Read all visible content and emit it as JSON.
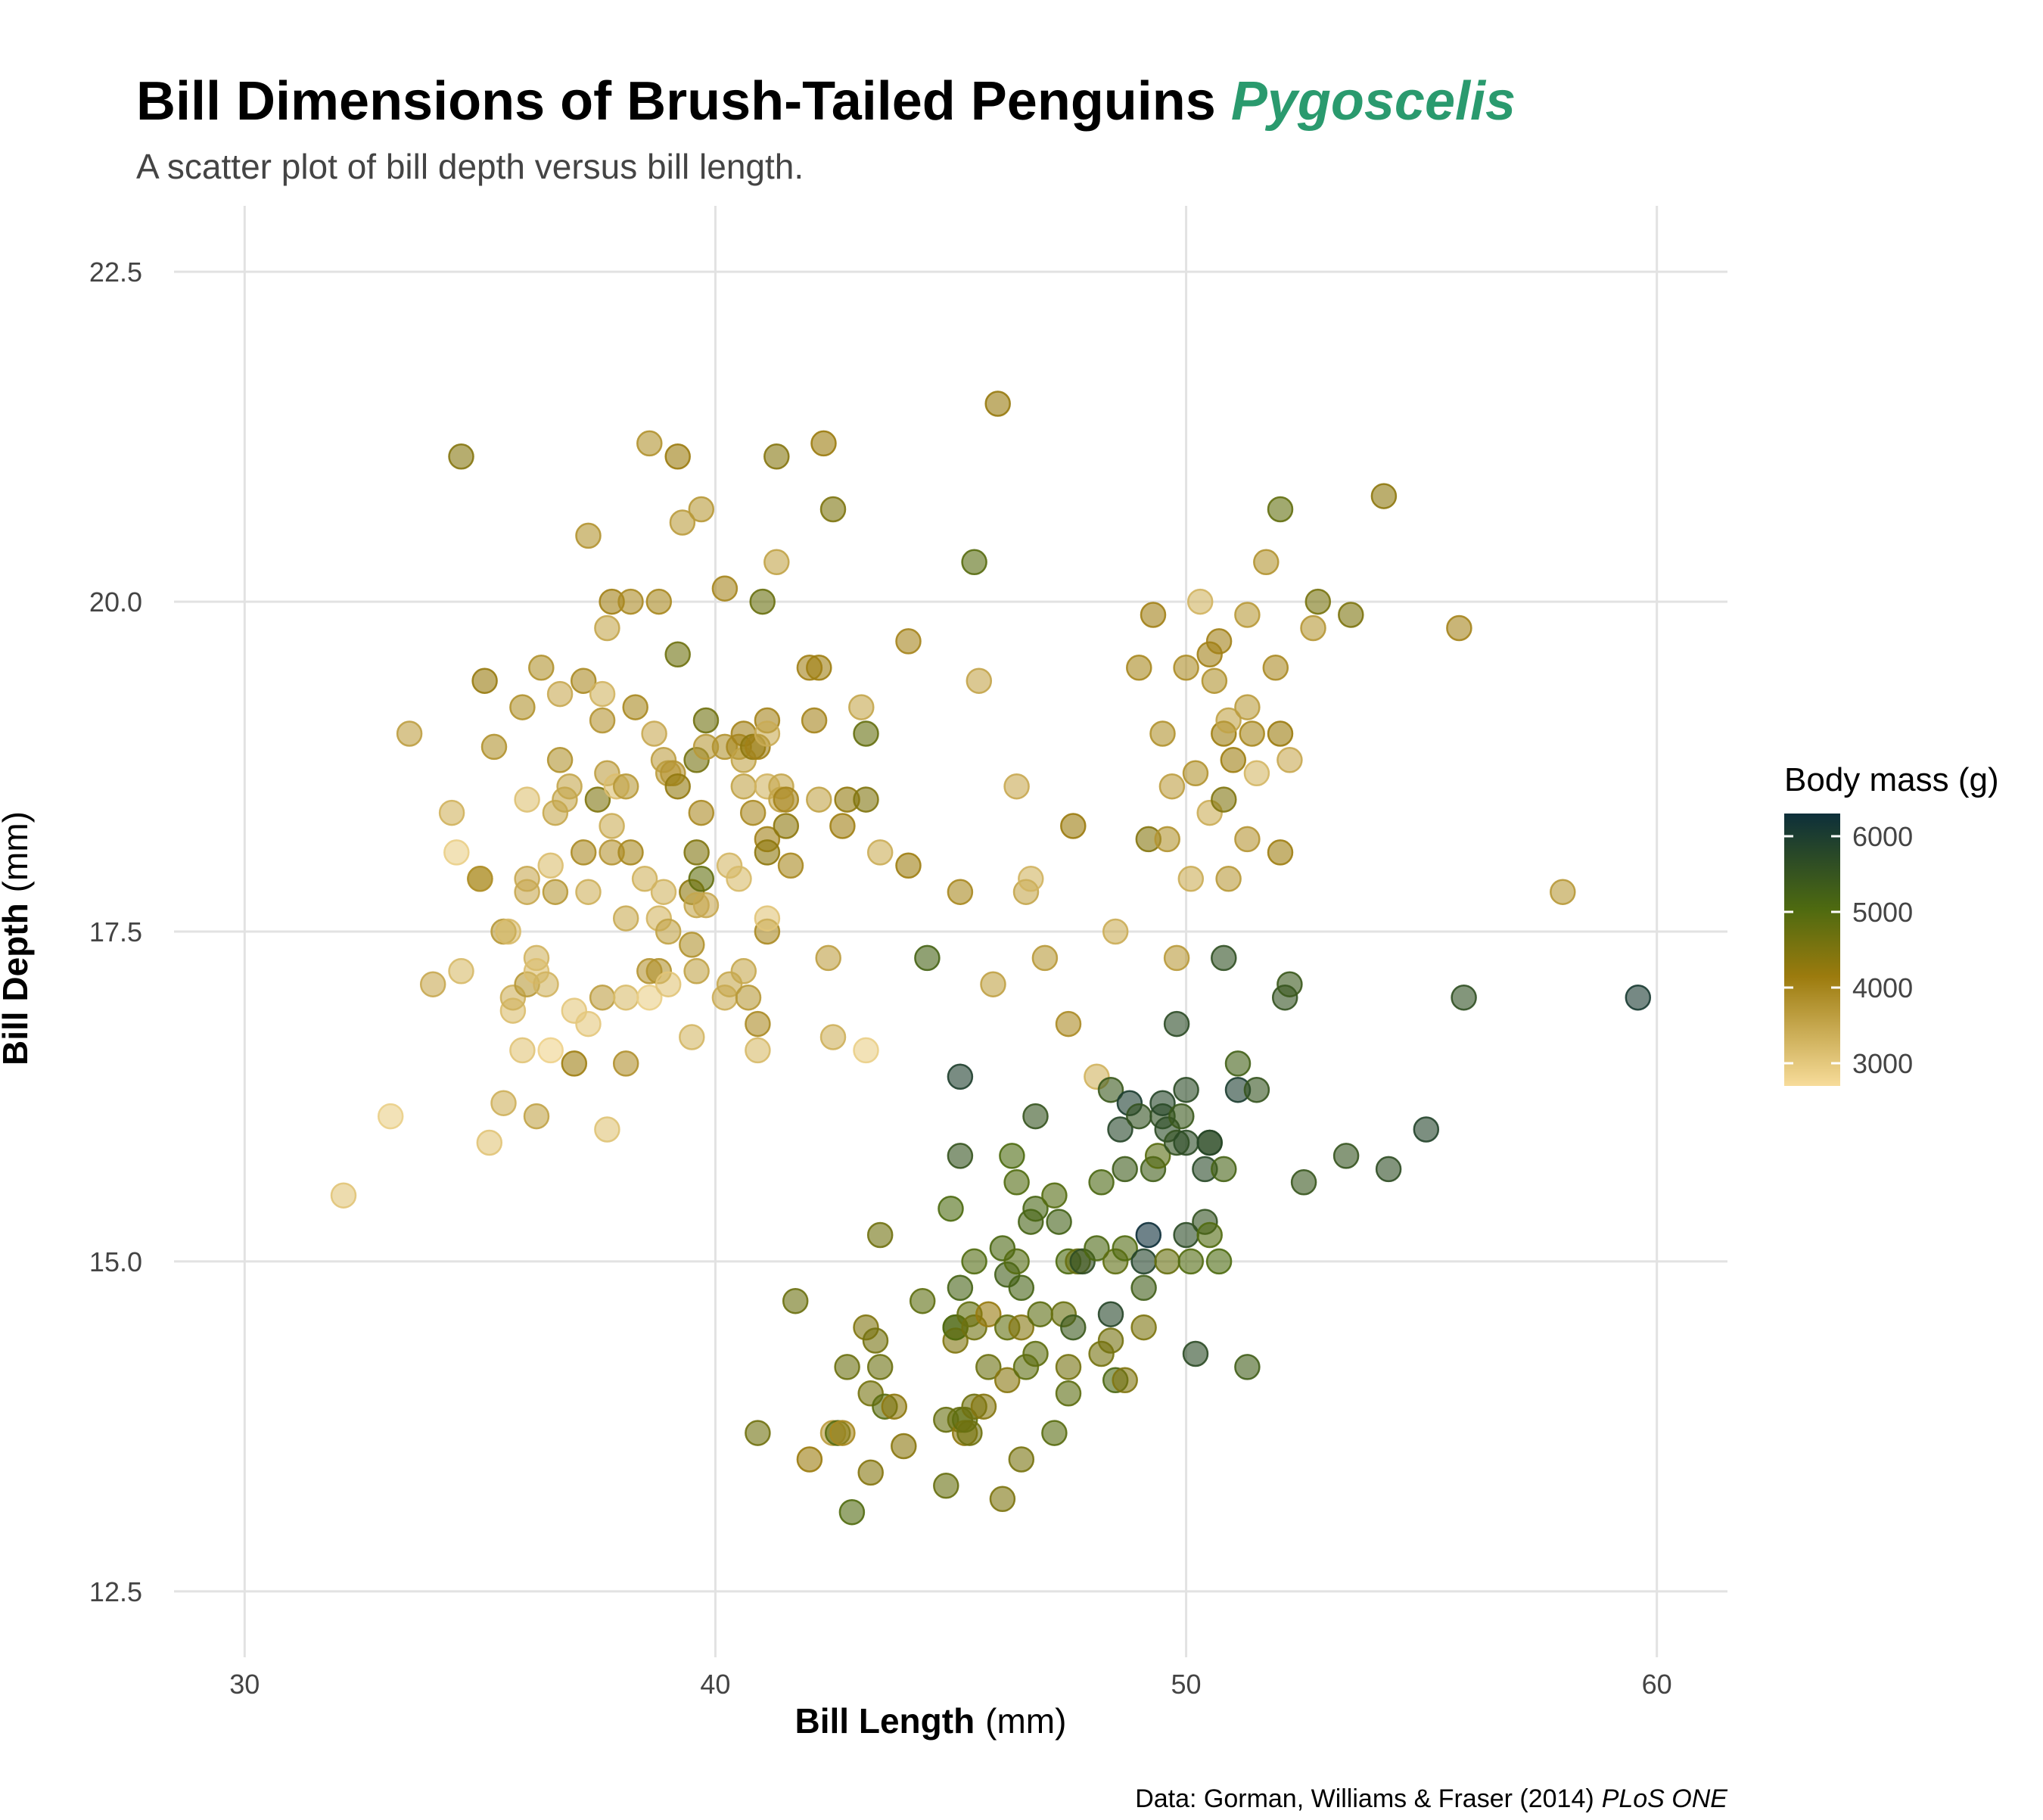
{
  "colors": {
    "grid": "#e2e2e2",
    "title_accent": "#2a9a6e",
    "gradient_low": "#f7dc9a",
    "gradient_mid_low": "#9c7b0e",
    "gradient_mid": "#4e6a10",
    "gradient_high": "#0d2f3a"
  },
  "legend": {
    "title": "Body mass (g)",
    "ticks": [
      "6000",
      "5000",
      "4000",
      "3000"
    ],
    "tick_values": [
      6000,
      5000,
      4000,
      3000
    ],
    "range": [
      2700,
      6300
    ]
  },
  "chart_data": {
    "type": "scatter",
    "title": "Bill Dimensions of Brush-Tailed Penguins",
    "title_italic": "Pygoscelis",
    "subtitle": "A scatter plot of bill depth versus bill length.",
    "xlabel_bold": "Bill Length",
    "xlabel_unit": "(mm)",
    "ylabel_bold": "Bill Depth",
    "ylabel_unit": "(mm)",
    "caption": "Data: Gorman, Williams & Fraser (2014)",
    "caption_italic": "PLoS ONE",
    "xlim": [
      28.5,
      61.5
    ],
    "ylim": [
      12.0,
      23.0
    ],
    "x_ticks": [
      30,
      40,
      50,
      60
    ],
    "x_tick_labels": [
      "30",
      "40",
      "50",
      "60"
    ],
    "y_ticks": [
      12.5,
      15.0,
      17.5,
      20.0,
      22.5
    ],
    "y_tick_labels": [
      "12.5",
      "15.0",
      "17.5",
      "20.0",
      "22.5"
    ],
    "grid": true,
    "legend_position": "right",
    "color_encoding": "Body mass (g)",
    "points": [
      [
        32.1,
        15.5,
        3050
      ],
      [
        33.1,
        16.1,
        2900
      ],
      [
        33.5,
        19.0,
        3600
      ],
      [
        34.0,
        17.1,
        3450
      ],
      [
        34.4,
        18.4,
        3325
      ],
      [
        34.5,
        18.1,
        2900
      ],
      [
        34.6,
        21.1,
        4400
      ],
      [
        34.6,
        17.2,
        3200
      ],
      [
        35.0,
        17.9,
        3800
      ],
      [
        35.0,
        17.9,
        3800
      ],
      [
        35.1,
        19.4,
        4200
      ],
      [
        35.2,
        15.9,
        3050
      ],
      [
        35.3,
        18.9,
        3800
      ],
      [
        35.5,
        17.5,
        3700
      ],
      [
        35.5,
        16.2,
        3350
      ],
      [
        35.6,
        17.5,
        3200
      ],
      [
        35.7,
        16.9,
        3150
      ],
      [
        35.7,
        17.0,
        3350
      ],
      [
        35.9,
        19.2,
        3800
      ],
      [
        35.9,
        16.6,
        3050
      ],
      [
        36.0,
        18.5,
        3100
      ],
      [
        36.0,
        17.9,
        3450
      ],
      [
        36.0,
        17.8,
        3450
      ],
      [
        36.0,
        17.1,
        3700
      ],
      [
        36.2,
        17.3,
        3300
      ],
      [
        36.2,
        16.1,
        3550
      ],
      [
        36.2,
        17.2,
        3150
      ],
      [
        36.3,
        19.5,
        3800
      ],
      [
        36.4,
        17.1,
        3300
      ],
      [
        36.5,
        16.6,
        2850
      ],
      [
        36.5,
        18.0,
        3150
      ],
      [
        36.6,
        17.8,
        3700
      ],
      [
        36.6,
        18.4,
        3475
      ],
      [
        36.7,
        18.8,
        3800
      ],
      [
        36.7,
        19.3,
        3450
      ],
      [
        36.8,
        18.5,
        3500
      ],
      [
        36.9,
        18.6,
        3500
      ],
      [
        37.0,
        16.9,
        3000
      ],
      [
        37.0,
        16.5,
        4100
      ],
      [
        37.2,
        18.1,
        3900
      ],
      [
        37.2,
        19.4,
        3900
      ],
      [
        37.3,
        20.5,
        3775
      ],
      [
        37.3,
        17.8,
        3350
      ],
      [
        37.3,
        16.8,
        3000
      ],
      [
        37.5,
        18.5,
        4475
      ],
      [
        37.6,
        19.1,
        3750
      ],
      [
        37.6,
        17.0,
        3600
      ],
      [
        37.6,
        19.3,
        3300
      ],
      [
        37.7,
        18.7,
        3600
      ],
      [
        37.7,
        16.0,
        3075
      ],
      [
        37.7,
        19.8,
        3500
      ],
      [
        37.8,
        18.1,
        3750
      ],
      [
        37.8,
        20.0,
        4050
      ],
      [
        37.8,
        18.3,
        3400
      ],
      [
        37.9,
        18.6,
        3150
      ],
      [
        38.1,
        18.6,
        3700
      ],
      [
        38.1,
        17.6,
        3425
      ],
      [
        38.1,
        17.0,
        3175
      ],
      [
        38.1,
        16.5,
        3825
      ],
      [
        38.2,
        18.1,
        3950
      ],
      [
        38.2,
        20.0,
        3900
      ],
      [
        38.3,
        19.2,
        3950
      ],
      [
        38.5,
        17.9,
        3325
      ],
      [
        38.6,
        21.2,
        3800
      ],
      [
        38.6,
        17.2,
        3750
      ],
      [
        38.6,
        17.0,
        2900
      ],
      [
        38.7,
        19.0,
        3450
      ],
      [
        38.8,
        20.0,
        3950
      ],
      [
        38.8,
        17.6,
        3275
      ],
      [
        38.8,
        17.2,
        3800
      ],
      [
        38.9,
        18.8,
        3600
      ],
      [
        38.9,
        17.8,
        3300
      ],
      [
        39.0,
        18.7,
        3650
      ],
      [
        39.0,
        17.5,
        3550
      ],
      [
        39.0,
        17.1,
        3050
      ],
      [
        39.1,
        18.7,
        3750
      ],
      [
        39.2,
        19.6,
        4675
      ],
      [
        39.2,
        18.6,
        4250
      ],
      [
        39.2,
        21.1,
        4150
      ],
      [
        39.3,
        20.6,
        3650
      ],
      [
        39.5,
        17.4,
        3800
      ],
      [
        39.5,
        16.7,
        3250
      ],
      [
        39.5,
        17.8,
        4300
      ],
      [
        39.6,
        17.7,
        3500
      ],
      [
        39.6,
        18.8,
        4600
      ],
      [
        39.6,
        17.2,
        3550
      ],
      [
        39.6,
        18.1,
        4450
      ],
      [
        39.7,
        18.4,
        3900
      ],
      [
        39.7,
        17.9,
        4800
      ],
      [
        39.7,
        20.7,
        3700
      ],
      [
        39.8,
        19.1,
        4650
      ],
      [
        39.8,
        17.7,
        3450
      ],
      [
        39.8,
        18.9,
        3700
      ],
      [
        40.2,
        18.9,
        3800
      ],
      [
        40.2,
        17.0,
        3400
      ],
      [
        40.2,
        20.1,
        3975
      ],
      [
        40.3,
        18.0,
        3250
      ],
      [
        40.3,
        17.1,
        3475
      ],
      [
        40.5,
        18.9,
        3950
      ],
      [
        40.5,
        17.9,
        3200
      ],
      [
        40.6,
        18.6,
        3550
      ],
      [
        40.6,
        19.0,
        4000
      ],
      [
        40.6,
        18.8,
        3550
      ],
      [
        40.6,
        17.2,
        3475
      ],
      [
        40.7,
        17.0,
        3700
      ],
      [
        40.8,
        18.4,
        3900
      ],
      [
        40.8,
        18.9,
        4300
      ],
      [
        40.9,
        18.9,
        4050
      ],
      [
        40.9,
        16.6,
        3200
      ],
      [
        40.9,
        16.8,
        3900
      ],
      [
        41.0,
        20.0,
        4725
      ],
      [
        41.1,
        19.1,
        4000
      ],
      [
        41.1,
        18.2,
        4050
      ],
      [
        41.1,
        18.1,
        4300
      ],
      [
        41.1,
        17.5,
        3900
      ],
      [
        41.1,
        19.0,
        3425
      ],
      [
        41.1,
        17.6,
        3050
      ],
      [
        41.1,
        18.6,
        3300
      ],
      [
        41.3,
        21.1,
        4400
      ],
      [
        41.3,
        20.3,
        3550
      ],
      [
        41.4,
        18.5,
        3550
      ],
      [
        41.4,
        18.6,
        3500
      ],
      [
        41.5,
        18.3,
        4300
      ],
      [
        41.5,
        18.5,
        4000
      ],
      [
        41.6,
        18.0,
        3950
      ],
      [
        42.0,
        19.5,
        4050
      ],
      [
        42.1,
        19.1,
        4000
      ],
      [
        42.2,
        18.5,
        3550
      ],
      [
        42.2,
        19.5,
        4100
      ],
      [
        42.3,
        21.2,
        4150
      ],
      [
        42.4,
        17.3,
        3600
      ],
      [
        42.5,
        20.7,
        4500
      ],
      [
        42.5,
        16.7,
        3350
      ],
      [
        42.7,
        18.3,
        4075
      ],
      [
        42.8,
        18.5,
        4250
      ],
      [
        43.1,
        19.2,
        3500
      ],
      [
        43.2,
        18.5,
        4450
      ],
      [
        43.2,
        16.6,
        2900
      ],
      [
        43.2,
        19.0,
        4775
      ],
      [
        43.5,
        18.1,
        3400
      ],
      [
        44.1,
        19.7,
        4000
      ],
      [
        44.1,
        18.0,
        4100
      ],
      [
        44.5,
        17.3,
        5200
      ],
      [
        45.2,
        17.8,
        3950
      ],
      [
        45.5,
        20.3,
        4925
      ],
      [
        45.6,
        19.4,
        3525
      ],
      [
        45.9,
        17.1,
        3575
      ],
      [
        46.0,
        21.5,
        4200
      ],
      [
        46.4,
        18.6,
        3450
      ],
      [
        46.6,
        17.8,
        3500
      ],
      [
        46.7,
        17.9,
        3300
      ],
      [
        47.0,
        17.3,
        3700
      ],
      [
        47.5,
        16.8,
        3900
      ],
      [
        47.6,
        18.3,
        4150
      ],
      [
        48.1,
        16.4,
        3325
      ],
      [
        48.5,
        17.5,
        3400
      ],
      [
        49.0,
        19.5,
        3950
      ],
      [
        49.2,
        18.2,
        4400
      ],
      [
        49.3,
        19.9,
        4050
      ],
      [
        49.5,
        19.0,
        3800
      ],
      [
        49.6,
        18.2,
        3775
      ],
      [
        49.7,
        18.6,
        3600
      ],
      [
        49.8,
        17.3,
        3675
      ],
      [
        50.0,
        19.5,
        3875
      ],
      [
        50.1,
        17.9,
        3400
      ],
      [
        50.2,
        18.7,
        3775
      ],
      [
        50.3,
        20.0,
        3300
      ],
      [
        50.5,
        18.4,
        3400
      ],
      [
        50.5,
        19.6,
        4050
      ],
      [
        50.6,
        19.4,
        3800
      ],
      [
        50.7,
        19.7,
        4050
      ],
      [
        50.8,
        19.0,
        4100
      ],
      [
        50.8,
        18.5,
        4450
      ],
      [
        50.9,
        19.1,
        3550
      ],
      [
        50.9,
        17.9,
        3675
      ],
      [
        51.0,
        18.8,
        4100
      ],
      [
        51.3,
        19.9,
        3700
      ],
      [
        51.3,
        18.2,
        3750
      ],
      [
        51.3,
        19.2,
        3650
      ],
      [
        51.4,
        19.0,
        3950
      ],
      [
        51.5,
        18.7,
        3250
      ],
      [
        51.7,
        20.3,
        3775
      ],
      [
        51.9,
        19.5,
        3900
      ],
      [
        52.0,
        18.1,
        4100
      ],
      [
        52.0,
        19.0,
        4150
      ],
      [
        52.0,
        20.7,
        4800
      ],
      [
        52.2,
        18.8,
        3450
      ],
      [
        52.7,
        19.8,
        3725
      ],
      [
        52.8,
        20.0,
        4550
      ],
      [
        53.5,
        19.9,
        4500
      ],
      [
        54.2,
        20.8,
        4300
      ],
      [
        55.8,
        19.8,
        4000
      ],
      [
        58.0,
        17.8,
        3700
      ],
      [
        40.9,
        13.7,
        4650
      ],
      [
        41.7,
        14.7,
        4700
      ],
      [
        42.0,
        13.5,
        4150
      ],
      [
        42.5,
        13.7,
        3650
      ],
      [
        42.6,
        13.7,
        4950
      ],
      [
        42.7,
        13.7,
        3950
      ],
      [
        42.8,
        14.2,
        4700
      ],
      [
        42.9,
        13.1,
        5000
      ],
      [
        43.2,
        14.5,
        4450
      ],
      [
        43.3,
        13.4,
        4400
      ],
      [
        43.3,
        14.0,
        4575
      ],
      [
        43.4,
        14.4,
        4600
      ],
      [
        43.5,
        15.2,
        4650
      ],
      [
        43.5,
        14.2,
        4700
      ],
      [
        43.6,
        13.9,
        4900
      ],
      [
        43.8,
        13.9,
        4300
      ],
      [
        44.0,
        13.6,
        4350
      ],
      [
        44.4,
        14.7,
        4850
      ],
      [
        44.9,
        13.8,
        4750
      ],
      [
        44.9,
        13.3,
        4750
      ],
      [
        45.0,
        15.4,
        5050
      ],
      [
        45.1,
        14.5,
        5200
      ],
      [
        45.1,
        14.4,
        4450
      ],
      [
        45.1,
        14.5,
        5000
      ],
      [
        45.2,
        13.8,
        4750
      ],
      [
        45.2,
        14.8,
        5200
      ],
      [
        45.2,
        15.8,
        5500
      ],
      [
        45.2,
        16.4,
        5950
      ],
      [
        45.3,
        13.7,
        4300
      ],
      [
        45.3,
        13.8,
        4850
      ],
      [
        45.4,
        14.6,
        4800
      ],
      [
        45.4,
        13.7,
        4675
      ],
      [
        45.5,
        13.9,
        4650
      ],
      [
        45.5,
        14.5,
        4650
      ],
      [
        45.5,
        15.0,
        5000
      ],
      [
        45.7,
        13.9,
        4400
      ],
      [
        45.8,
        14.6,
        4200
      ],
      [
        45.8,
        14.2,
        4700
      ],
      [
        46.1,
        15.1,
        5100
      ],
      [
        46.1,
        13.2,
        4500
      ],
      [
        46.2,
        14.9,
        5300
      ],
      [
        46.2,
        14.5,
        4800
      ],
      [
        46.2,
        14.1,
        4375
      ],
      [
        46.3,
        15.8,
        5050
      ],
      [
        46.4,
        15.0,
        4975
      ],
      [
        46.4,
        15.6,
        5000
      ],
      [
        46.5,
        14.5,
        4400
      ],
      [
        46.5,
        14.8,
        5200
      ],
      [
        46.5,
        13.5,
        4550
      ],
      [
        46.6,
        14.2,
        4850
      ],
      [
        46.7,
        15.3,
        5200
      ],
      [
        46.8,
        15.4,
        5150
      ],
      [
        46.8,
        14.3,
        4850
      ],
      [
        46.8,
        16.1,
        5500
      ],
      [
        46.9,
        14.6,
        4875
      ],
      [
        47.2,
        13.7,
        4925
      ],
      [
        47.2,
        15.5,
        4975
      ],
      [
        47.3,
        15.3,
        5250
      ],
      [
        47.4,
        14.6,
        4725
      ],
      [
        47.5,
        14.0,
        4875
      ],
      [
        47.5,
        14.2,
        4600
      ],
      [
        47.5,
        15.0,
        5050
      ],
      [
        47.6,
        14.5,
        5400
      ],
      [
        47.7,
        15.0,
        4750
      ],
      [
        47.8,
        15.0,
        5650
      ],
      [
        48.1,
        15.1,
        5100
      ],
      [
        48.2,
        14.3,
        4600
      ],
      [
        48.2,
        15.6,
        5100
      ],
      [
        48.4,
        14.6,
        5800
      ],
      [
        48.4,
        14.4,
        4600
      ],
      [
        48.4,
        16.3,
        5400
      ],
      [
        48.5,
        14.1,
        5100
      ],
      [
        48.5,
        15.0,
        4850
      ],
      [
        48.6,
        16.0,
        5800
      ],
      [
        48.7,
        15.7,
        5350
      ],
      [
        48.7,
        14.1,
        4450
      ],
      [
        48.7,
        15.1,
        5000
      ],
      [
        48.8,
        16.2,
        6000
      ],
      [
        49.0,
        16.1,
        5550
      ],
      [
        49.1,
        14.8,
        5300
      ],
      [
        49.1,
        15.0,
        5850
      ],
      [
        49.1,
        14.5,
        4500
      ],
      [
        49.2,
        15.2,
        6300
      ],
      [
        49.3,
        15.7,
        5300
      ],
      [
        49.4,
        15.8,
        4925
      ],
      [
        49.5,
        16.1,
        5600
      ],
      [
        49.5,
        16.2,
        5800
      ],
      [
        49.6,
        16.0,
        5700
      ],
      [
        49.6,
        15.0,
        4750
      ],
      [
        49.8,
        15.9,
        5550
      ],
      [
        49.8,
        16.8,
        5700
      ],
      [
        49.9,
        16.1,
        5400
      ],
      [
        50.0,
        15.2,
        5700
      ],
      [
        50.0,
        16.3,
        5700
      ],
      [
        50.0,
        15.9,
        5700
      ],
      [
        50.1,
        15.0,
        5000
      ],
      [
        50.2,
        14.3,
        5700
      ],
      [
        50.4,
        15.3,
        5550
      ],
      [
        50.4,
        15.7,
        5750
      ],
      [
        50.5,
        15.9,
        5400
      ],
      [
        50.5,
        15.2,
        5000
      ],
      [
        50.5,
        15.9,
        5800
      ],
      [
        50.7,
        15.0,
        5050
      ],
      [
        50.8,
        15.7,
        5200
      ],
      [
        50.8,
        17.3,
        5600
      ],
      [
        51.1,
        16.5,
        5250
      ],
      [
        51.1,
        16.3,
        6000
      ],
      [
        51.3,
        14.2,
        5300
      ],
      [
        51.5,
        16.3,
        5500
      ],
      [
        52.1,
        17.0,
        5550
      ],
      [
        52.2,
        17.1,
        5400
      ],
      [
        52.5,
        15.6,
        5450
      ],
      [
        53.4,
        15.8,
        5500
      ],
      [
        54.3,
        15.7,
        5650
      ],
      [
        55.1,
        16.0,
        5850
      ],
      [
        55.9,
        17.0,
        5600
      ],
      [
        59.6,
        17.0,
        6050
      ]
    ]
  }
}
